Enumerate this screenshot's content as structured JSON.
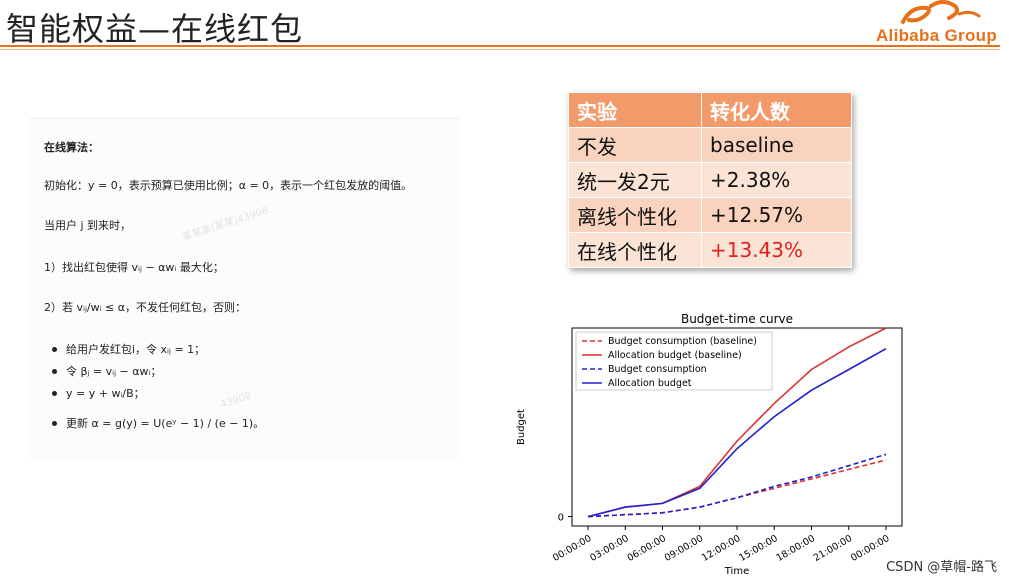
{
  "header": {
    "title": "智能权益—在线红包",
    "logo_text": "Alibaba Group"
  },
  "algorithm": {
    "heading": "在线算法：",
    "init": "初始化：y = 0，表示预算已使用比例；α = 0，表示一个红包发放的阈值。",
    "when_user": "当用户 j 到来时，",
    "step1": "1）找出红包使得 vᵢⱼ − αwᵢ 最大化；",
    "step2": "2）若 vᵢⱼ/wᵢ ≤ α，不发任何红包，否则：",
    "bullets": [
      "给用户发红包i，令 xᵢⱼ = 1；",
      "令 βⱼ = vᵢⱼ − αwᵢ；",
      "y = y + wᵢ/B；",
      "更新 α = g(y) = U(eʸ − 1) / (e − 1)。"
    ],
    "watermarks": [
      "某某某(某某)43908",
      "43908"
    ]
  },
  "table": {
    "headers": [
      "实验",
      "转化人数"
    ],
    "rows": [
      {
        "name": "不发",
        "value": "baseline"
      },
      {
        "name": "统一发2元",
        "value": "+2.38%"
      },
      {
        "name": "离线个性化",
        "value": "+12.57%"
      },
      {
        "name": "在线个性化",
        "value": "+13.43%"
      }
    ],
    "highlight_color": "#e02020"
  },
  "chart_data": {
    "type": "line",
    "title": "Budget-time curve",
    "xlabel": "Time",
    "ylabel": "Budget",
    "x": [
      "00:00:00",
      "03:00:00",
      "06:00:00",
      "09:00:00",
      "12:00:00",
      "15:00:00",
      "18:00:00",
      "21:00:00",
      "00:00:00"
    ],
    "yticks": [
      "0"
    ],
    "ylim": [
      -0.05,
      1.0
    ],
    "legend_position": "top-left",
    "series": [
      {
        "name": "Budget consumption (baseline)",
        "color": "#e03030",
        "dashed": true,
        "values": [
          0,
          0.01,
          0.02,
          0.05,
          0.1,
          0.15,
          0.2,
          0.25,
          0.3
        ]
      },
      {
        "name": "Allocation budget (baseline)",
        "color": "#e03030",
        "dashed": false,
        "values": [
          0,
          0.05,
          0.07,
          0.16,
          0.4,
          0.6,
          0.78,
          0.9,
          1.0
        ]
      },
      {
        "name": "Budget consumption",
        "color": "#2020d0",
        "dashed": true,
        "values": [
          0,
          0.01,
          0.02,
          0.05,
          0.1,
          0.16,
          0.21,
          0.27,
          0.33
        ]
      },
      {
        "name": "Allocation budget",
        "color": "#2020d0",
        "dashed": false,
        "values": [
          0,
          0.05,
          0.07,
          0.15,
          0.36,
          0.53,
          0.67,
          0.78,
          0.89
        ]
      }
    ]
  },
  "footer": {
    "watermark": "CSDN @草帽-路飞"
  }
}
